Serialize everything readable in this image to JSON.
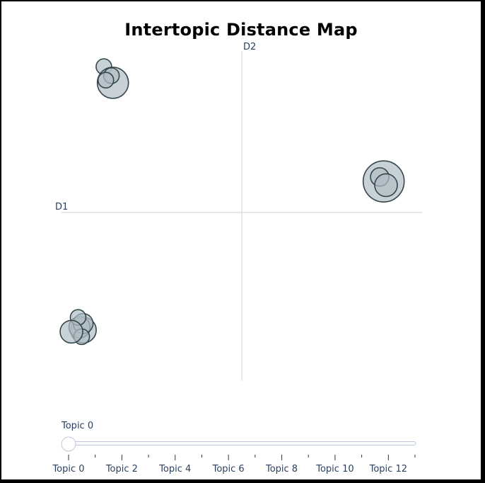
{
  "chart_data": {
    "type": "scatter",
    "title": "Intertopic Distance Map",
    "xlabel": "D1",
    "ylabel": "D2",
    "xlim": [
      -1,
      1
    ],
    "ylim": [
      -1,
      1
    ],
    "grid": false,
    "bubbles": [
      {
        "x": -0.765,
        "y": 0.905,
        "size": 11
      },
      {
        "x": -0.715,
        "y": 0.807,
        "size": 22
      },
      {
        "x": -0.723,
        "y": 0.85,
        "size": 11
      },
      {
        "x": -0.754,
        "y": 0.823,
        "size": 11
      },
      {
        "x": 0.787,
        "y": 0.208,
        "size": 29
      },
      {
        "x": 0.765,
        "y": 0.235,
        "size": 13
      },
      {
        "x": 0.8,
        "y": 0.185,
        "size": 16
      },
      {
        "x": -0.878,
        "y": -0.695,
        "size": 18
      },
      {
        "x": -0.9,
        "y": -0.678,
        "size": 15
      },
      {
        "x": -0.88,
        "y": -0.655,
        "size": 14
      },
      {
        "x": -0.888,
        "y": -0.735,
        "size": 11
      },
      {
        "x": -0.908,
        "y": -0.618,
        "size": 11
      },
      {
        "x": -0.945,
        "y": -0.705,
        "size": 16
      }
    ],
    "colors": {
      "bubble_fill": "#b0bec5",
      "bubble_stroke": "#34474d",
      "axis_line": "#d9d9d9"
    },
    "slider": {
      "current_label": "Topic 0",
      "ticks": [
        "Topic 0",
        "Topic 2",
        "Topic 4",
        "Topic 6",
        "Topic 8",
        "Topic 10",
        "Topic 12"
      ],
      "value": 0,
      "min": 0,
      "max": 13
    }
  }
}
